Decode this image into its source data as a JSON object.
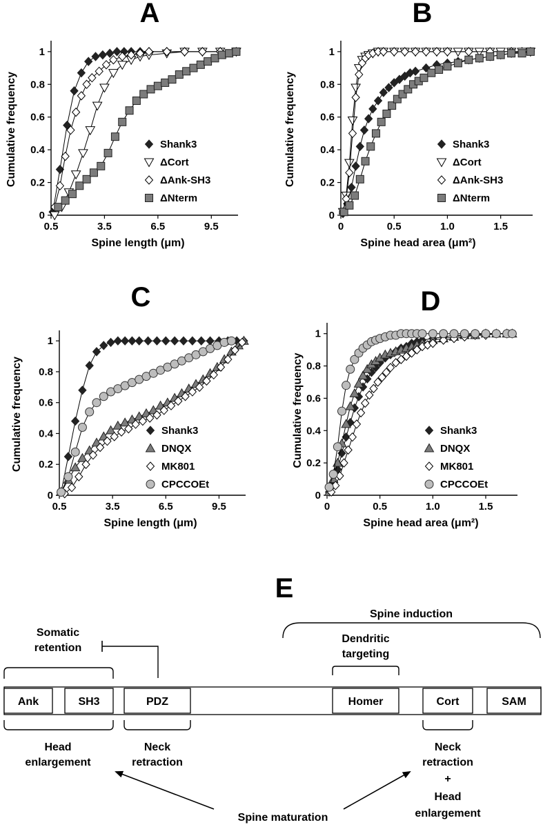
{
  "chart_data": [
    {
      "panel": "A",
      "type": "line",
      "xlabel": "Spine length (μm)",
      "ylabel": "Cumulative frequency",
      "xlim": [
        0.5,
        11
      ],
      "ylim": [
        0,
        1.05
      ],
      "xticks": [
        0.5,
        3.5,
        6.5,
        9.5
      ],
      "xtick_labels": [
        "0.5",
        "3.5",
        "6.5",
        "9.5"
      ],
      "yticks": [
        0,
        0.2,
        0.4,
        0.6,
        0.8,
        1
      ],
      "ytick_labels": [
        "0",
        "0.2",
        "0.4",
        "0.6",
        "0.8",
        "1"
      ],
      "legend_position": "lower-right",
      "series": [
        {
          "name": "Shank3",
          "marker": "diamond-filled",
          "x": [
            0.6,
            1.0,
            1.4,
            1.8,
            2.2,
            2.6,
            3.0,
            3.4,
            3.8,
            4.2,
            4.6,
            5.0,
            5.5,
            6.0,
            7.0,
            8.0,
            9.0,
            10.0,
            10.9
          ],
          "y": [
            0.02,
            0.28,
            0.55,
            0.76,
            0.87,
            0.94,
            0.97,
            0.98,
            0.99,
            1,
            1,
            1,
            1,
            1,
            1,
            1,
            1,
            1,
            1
          ]
        },
        {
          "name": "ΔCort",
          "marker": "triangle-down-open",
          "x": [
            0.7,
            1.1,
            1.5,
            1.9,
            2.3,
            2.7,
            3.1,
            3.5,
            4.0,
            4.5,
            5.0,
            5.5,
            6.0,
            7.0,
            8.0,
            9.0,
            10.0,
            10.9
          ],
          "y": [
            0,
            0.05,
            0.14,
            0.25,
            0.38,
            0.52,
            0.67,
            0.78,
            0.87,
            0.92,
            0.95,
            0.97,
            0.98,
            0.99,
            1,
            1,
            1,
            1
          ]
        },
        {
          "name": "ΔAnk-SH3",
          "marker": "diamond-open",
          "x": [
            0.7,
            1.0,
            1.3,
            1.6,
            1.9,
            2.2,
            2.5,
            2.8,
            3.2,
            3.6,
            4.0,
            4.5,
            5.0,
            5.5,
            6.0,
            7.0,
            8.0,
            9.0,
            10.0,
            10.9
          ],
          "y": [
            0.05,
            0.18,
            0.36,
            0.52,
            0.63,
            0.73,
            0.8,
            0.84,
            0.88,
            0.92,
            0.95,
            0.97,
            0.98,
            0.99,
            1,
            1,
            1,
            1,
            1,
            1
          ]
        },
        {
          "name": "ΔNterm",
          "marker": "square-filled",
          "x": [
            0.9,
            1.3,
            1.7,
            2.1,
            2.5,
            2.9,
            3.3,
            3.7,
            4.1,
            4.5,
            4.9,
            5.3,
            5.7,
            6.1,
            6.5,
            6.9,
            7.3,
            7.7,
            8.1,
            8.5,
            8.9,
            9.3,
            9.7,
            10.1,
            10.5,
            10.9
          ],
          "y": [
            0.05,
            0.09,
            0.13,
            0.18,
            0.22,
            0.26,
            0.3,
            0.38,
            0.48,
            0.57,
            0.64,
            0.7,
            0.74,
            0.77,
            0.79,
            0.81,
            0.83,
            0.86,
            0.88,
            0.9,
            0.92,
            0.94,
            0.96,
            0.98,
            0.99,
            1
          ]
        }
      ]
    },
    {
      "panel": "B",
      "type": "line",
      "xlabel": "Spine head area (μm²)",
      "ylabel": "Cumulative frequency",
      "xlim": [
        0,
        1.8
      ],
      "ylim": [
        0,
        1.05
      ],
      "xticks": [
        0,
        0.5,
        1.0,
        1.5
      ],
      "xtick_labels": [
        "0",
        "0.5",
        "1.0",
        "1.5"
      ],
      "yticks": [
        0,
        0.2,
        0.4,
        0.6,
        0.8,
        1
      ],
      "ytick_labels": [
        "0",
        "0.2",
        "0.4",
        "0.6",
        "0.8",
        "1"
      ],
      "legend_position": "lower-right",
      "series": [
        {
          "name": "Shank3",
          "marker": "diamond-filled",
          "x": [
            0.02,
            0.06,
            0.1,
            0.14,
            0.18,
            0.22,
            0.26,
            0.3,
            0.35,
            0.4,
            0.45,
            0.5,
            0.55,
            0.6,
            0.65,
            0.7,
            0.8,
            0.9,
            1.0,
            1.1,
            1.2,
            1.3,
            1.4,
            1.5,
            1.6,
            1.7,
            1.78
          ],
          "y": [
            0.01,
            0.07,
            0.17,
            0.3,
            0.42,
            0.52,
            0.59,
            0.65,
            0.7,
            0.75,
            0.78,
            0.81,
            0.83,
            0.85,
            0.87,
            0.88,
            0.9,
            0.92,
            0.93,
            0.94,
            0.95,
            0.96,
            0.97,
            0.98,
            0.99,
            1,
            1
          ]
        },
        {
          "name": "ΔCort",
          "marker": "triangle-down-open",
          "x": [
            0.02,
            0.05,
            0.08,
            0.11,
            0.14,
            0.17,
            0.2,
            0.23,
            0.26,
            0.3,
            0.35,
            0.4,
            0.5,
            0.6,
            0.7,
            0.8,
            0.9,
            1.0,
            1.1,
            1.2,
            1.3,
            1.4,
            1.5,
            1.6,
            1.7,
            1.78
          ],
          "y": [
            0.02,
            0.12,
            0.32,
            0.58,
            0.78,
            0.9,
            0.95,
            0.97,
            0.98,
            0.99,
            1,
            1,
            1,
            1,
            1,
            1,
            1,
            1,
            1,
            1,
            1,
            1,
            1,
            1,
            1,
            1
          ]
        },
        {
          "name": "ΔAnk-SH3",
          "marker": "diamond-open",
          "x": [
            0.02,
            0.05,
            0.08,
            0.11,
            0.14,
            0.17,
            0.2,
            0.23,
            0.26,
            0.3,
            0.35,
            0.4,
            0.5,
            0.6,
            0.7,
            0.8,
            0.9,
            1.0,
            1.2,
            1.4,
            1.6,
            1.78
          ],
          "y": [
            0.02,
            0.1,
            0.26,
            0.5,
            0.72,
            0.86,
            0.93,
            0.96,
            0.98,
            0.99,
            1,
            1,
            1,
            1,
            1,
            1,
            1,
            1,
            1,
            1,
            1,
            1
          ]
        },
        {
          "name": "ΔNterm",
          "marker": "square-filled",
          "x": [
            0.03,
            0.08,
            0.13,
            0.18,
            0.23,
            0.28,
            0.33,
            0.38,
            0.43,
            0.48,
            0.53,
            0.58,
            0.63,
            0.68,
            0.73,
            0.78,
            0.85,
            0.92,
            1.0,
            1.1,
            1.2,
            1.3,
            1.4,
            1.5,
            1.6,
            1.7,
            1.78
          ],
          "y": [
            0.02,
            0.06,
            0.12,
            0.22,
            0.33,
            0.42,
            0.5,
            0.57,
            0.62,
            0.67,
            0.71,
            0.74,
            0.77,
            0.8,
            0.82,
            0.84,
            0.87,
            0.89,
            0.91,
            0.93,
            0.95,
            0.96,
            0.97,
            0.98,
            0.99,
            0.99,
            1
          ]
        }
      ]
    },
    {
      "panel": "C",
      "type": "line",
      "xlabel": "Spine length (μm)",
      "ylabel": "Cumulative frequency",
      "xlim": [
        0.5,
        11
      ],
      "ylim": [
        0,
        1.05
      ],
      "xticks": [
        0.5,
        3.5,
        6.5,
        9.5
      ],
      "xtick_labels": [
        "0.5",
        "3.5",
        "6.5",
        "9.5"
      ],
      "yticks": [
        0,
        0.2,
        0.4,
        0.6,
        0.8,
        1
      ],
      "ytick_labels": [
        "0",
        "0.2",
        "0.4",
        "0.6",
        "0.8",
        "1"
      ],
      "legend_position": "lower-right",
      "series": [
        {
          "name": "Shank3",
          "marker": "diamond-filled",
          "x": [
            0.6,
            1.0,
            1.4,
            1.8,
            2.2,
            2.6,
            3.0,
            3.4,
            3.8,
            4.2,
            4.6,
            5.0,
            5.5,
            6.0,
            6.5,
            7.0,
            7.5,
            8.0,
            8.5,
            9.0,
            9.5,
            10.0,
            10.5,
            10.9
          ],
          "y": [
            0.02,
            0.25,
            0.48,
            0.68,
            0.84,
            0.93,
            0.97,
            0.99,
            1,
            1,
            1,
            1,
            1,
            1,
            1,
            1,
            1,
            1,
            1,
            1,
            1,
            1,
            1,
            1
          ]
        },
        {
          "name": "DNQX",
          "marker": "triangle-up-filled",
          "x": [
            0.6,
            1.0,
            1.4,
            1.8,
            2.2,
            2.6,
            3.0,
            3.4,
            3.8,
            4.2,
            4.6,
            5.0,
            5.4,
            5.8,
            6.2,
            6.6,
            7.0,
            7.4,
            7.8,
            8.2,
            8.6,
            9.0,
            9.4,
            9.8,
            10.2,
            10.6,
            10.9
          ],
          "y": [
            0.02,
            0.1,
            0.18,
            0.24,
            0.29,
            0.34,
            0.38,
            0.42,
            0.45,
            0.47,
            0.49,
            0.51,
            0.53,
            0.55,
            0.58,
            0.6,
            0.63,
            0.66,
            0.69,
            0.72,
            0.75,
            0.79,
            0.83,
            0.88,
            0.93,
            0.97,
            1
          ]
        },
        {
          "name": "MK801",
          "marker": "diamond-open",
          "x": [
            0.8,
            1.2,
            1.6,
            2.0,
            2.4,
            2.8,
            3.2,
            3.6,
            4.0,
            4.4,
            4.8,
            5.2,
            5.6,
            6.0,
            6.4,
            6.8,
            7.2,
            7.6,
            8.0,
            8.4,
            8.8,
            9.2,
            9.6,
            10.0,
            10.4,
            10.8
          ],
          "y": [
            0.01,
            0.05,
            0.12,
            0.2,
            0.26,
            0.31,
            0.35,
            0.38,
            0.41,
            0.43,
            0.46,
            0.48,
            0.5,
            0.52,
            0.55,
            0.58,
            0.61,
            0.64,
            0.67,
            0.7,
            0.74,
            0.78,
            0.83,
            0.88,
            0.94,
            0.99
          ]
        },
        {
          "name": "CPCCOEt",
          "marker": "circle-filled",
          "x": [
            0.6,
            1.0,
            1.4,
            1.8,
            2.2,
            2.6,
            3.0,
            3.4,
            3.8,
            4.2,
            4.6,
            5.0,
            5.4,
            5.8,
            6.2,
            6.6,
            7.0,
            7.4,
            7.8,
            8.2,
            8.6,
            9.0,
            9.4,
            9.8,
            10.2
          ],
          "y": [
            0.02,
            0.12,
            0.28,
            0.44,
            0.54,
            0.6,
            0.64,
            0.67,
            0.69,
            0.71,
            0.73,
            0.75,
            0.77,
            0.79,
            0.81,
            0.83,
            0.85,
            0.87,
            0.89,
            0.91,
            0.93,
            0.95,
            0.97,
            0.99,
            1
          ]
        }
      ]
    },
    {
      "panel": "D",
      "type": "line",
      "xlabel": "Spine head area (μm²)",
      "ylabel": "Cumulative frequency",
      "xlim": [
        0,
        1.8
      ],
      "ylim": [
        0,
        1.05
      ],
      "xticks": [
        0,
        0.5,
        1.0,
        1.5
      ],
      "xtick_labels": [
        "0",
        "0.5",
        "1.0",
        "1.5"
      ],
      "yticks": [
        0,
        0.2,
        0.4,
        0.6,
        0.8,
        1
      ],
      "ytick_labels": [
        "0",
        "0.2",
        "0.4",
        "0.6",
        "0.8",
        "1"
      ],
      "legend_position": "lower-right",
      "series": [
        {
          "name": "Shank3",
          "marker": "diamond-filled",
          "x": [
            0.02,
            0.06,
            0.1,
            0.14,
            0.18,
            0.22,
            0.26,
            0.3,
            0.34,
            0.38,
            0.42,
            0.46,
            0.5,
            0.55,
            0.6,
            0.65,
            0.7,
            0.75,
            0.8,
            0.85,
            0.9,
            1.0,
            1.1,
            1.2,
            1.3,
            1.4,
            1.5,
            1.6,
            1.7,
            1.75
          ],
          "y": [
            0.02,
            0.08,
            0.16,
            0.26,
            0.36,
            0.45,
            0.54,
            0.61,
            0.67,
            0.72,
            0.76,
            0.79,
            0.82,
            0.85,
            0.87,
            0.89,
            0.91,
            0.92,
            0.94,
            0.95,
            0.96,
            0.97,
            0.98,
            0.99,
            0.99,
            1,
            1,
            1,
            1,
            1
          ]
        },
        {
          "name": "DNQX",
          "marker": "triangle-up-filled",
          "x": [
            0.02,
            0.06,
            0.1,
            0.14,
            0.18,
            0.22,
            0.26,
            0.3,
            0.34,
            0.38,
            0.42,
            0.46,
            0.5,
            0.55,
            0.6,
            0.65,
            0.7,
            0.75,
            0.8,
            0.85,
            0.9,
            1.0,
            1.1,
            1.2,
            1.3,
            1.4,
            1.5,
            1.6,
            1.7,
            1.75
          ],
          "y": [
            0.02,
            0.1,
            0.2,
            0.32,
            0.44,
            0.55,
            0.63,
            0.69,
            0.74,
            0.78,
            0.81,
            0.83,
            0.85,
            0.87,
            0.88,
            0.89,
            0.9,
            0.91,
            0.92,
            0.93,
            0.94,
            0.96,
            0.97,
            0.98,
            0.99,
            0.99,
            1,
            1,
            1,
            1
          ]
        },
        {
          "name": "MK801",
          "marker": "diamond-open",
          "x": [
            0.04,
            0.08,
            0.12,
            0.16,
            0.2,
            0.24,
            0.28,
            0.32,
            0.36,
            0.4,
            0.44,
            0.48,
            0.52,
            0.56,
            0.6,
            0.65,
            0.7,
            0.75,
            0.8,
            0.85,
            0.9,
            0.95,
            1.0,
            1.1,
            1.2,
            1.3,
            1.4,
            1.5,
            1.6,
            1.7,
            1.75
          ],
          "y": [
            0.02,
            0.06,
            0.12,
            0.2,
            0.28,
            0.36,
            0.44,
            0.51,
            0.57,
            0.62,
            0.66,
            0.7,
            0.73,
            0.76,
            0.79,
            0.82,
            0.84,
            0.86,
            0.88,
            0.9,
            0.92,
            0.93,
            0.94,
            0.96,
            0.97,
            0.98,
            0.99,
            0.99,
            1,
            1,
            1
          ]
        },
        {
          "name": "CPCCOEt",
          "marker": "circle-filled",
          "x": [
            0.02,
            0.06,
            0.1,
            0.14,
            0.18,
            0.22,
            0.26,
            0.3,
            0.34,
            0.38,
            0.42,
            0.46,
            0.5,
            0.55,
            0.6,
            0.65,
            0.7,
            0.75,
            0.8,
            0.85,
            0.9,
            1.0,
            1.1,
            1.2,
            1.3,
            1.4,
            1.5,
            1.6,
            1.7,
            1.75
          ],
          "y": [
            0.05,
            0.13,
            0.3,
            0.52,
            0.68,
            0.78,
            0.84,
            0.88,
            0.91,
            0.93,
            0.95,
            0.96,
            0.97,
            0.98,
            0.99,
            0.99,
            1,
            1,
            1,
            1,
            1,
            1,
            1,
            1,
            1,
            1,
            1,
            1,
            1,
            1
          ]
        }
      ]
    }
  ],
  "panels": {
    "A": {
      "letter": "A"
    },
    "B": {
      "letter": "B"
    },
    "C": {
      "letter": "C"
    },
    "D": {
      "letter": "D"
    }
  },
  "diagram": {
    "letter": "E",
    "domains": [
      "Ank",
      "SH3",
      "PDZ",
      "Homer",
      "Cort",
      "SAM"
    ],
    "labels": {
      "spine_induction": "Spine induction",
      "somatic_1": "Somatic",
      "somatic_2": "retention",
      "dendritic_1": "Dendritic",
      "dendritic_2": "targeting",
      "head_1": "Head",
      "head_2": "enlargement",
      "neck_1": "Neck",
      "neck_2": "retraction",
      "cort_1": "Neck",
      "cort_2": "retraction",
      "cort_plus": "+",
      "cort_3": "Head",
      "cort_4": "enlargement",
      "maturation": "Spine maturation"
    }
  }
}
